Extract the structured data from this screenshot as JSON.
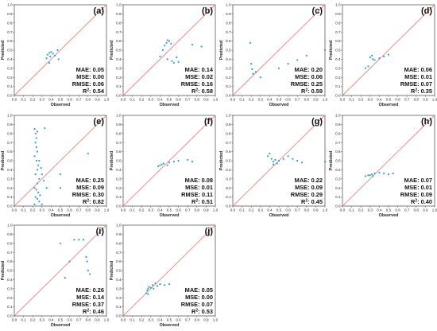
{
  "axis_ticks": [
    "0.0",
    "0.1",
    "0.2",
    "0.3",
    "0.4",
    "0.5",
    "0.6",
    "0.7",
    "0.8",
    "0.9",
    "1.0"
  ],
  "colors": {
    "points": "#2a9fd6",
    "diagonal": "#f08080",
    "frame": "#444444"
  },
  "chart_data": [
    {
      "type": "scatter",
      "label": "(a)",
      "xlabel": "Observed",
      "ylabel": "Predicted",
      "xlim": [
        0,
        1
      ],
      "ylim": [
        0,
        1
      ],
      "diagonal": true,
      "metrics": {
        "MAE": "0.05",
        "MSE": "0.00",
        "RMSE": "0.06",
        "R2": "0.54"
      },
      "points": [
        [
          0.35,
          0.41
        ],
        [
          0.36,
          0.45
        ],
        [
          0.38,
          0.47
        ],
        [
          0.4,
          0.48
        ],
        [
          0.42,
          0.46
        ],
        [
          0.44,
          0.44
        ],
        [
          0.47,
          0.5
        ],
        [
          0.48,
          0.4
        ],
        [
          0.38,
          0.36
        ],
        [
          0.39,
          0.43
        ]
      ]
    },
    {
      "type": "scatter",
      "label": "(b)",
      "xlabel": "Observed",
      "ylabel": "Predicted",
      "xlim": [
        0,
        1
      ],
      "ylim": [
        0,
        1
      ],
      "diagonal": true,
      "metrics": {
        "MAE": "0.14",
        "MSE": "0.02",
        "RMSE": "0.16",
        "R2": "0.58"
      },
      "points": [
        [
          0.4,
          0.43
        ],
        [
          0.43,
          0.5
        ],
        [
          0.45,
          0.55
        ],
        [
          0.47,
          0.58
        ],
        [
          0.48,
          0.61
        ],
        [
          0.5,
          0.6
        ],
        [
          0.52,
          0.57
        ],
        [
          0.48,
          0.4
        ],
        [
          0.53,
          0.38
        ],
        [
          0.55,
          0.36
        ],
        [
          0.58,
          0.42
        ],
        [
          0.6,
          0.37
        ],
        [
          0.75,
          0.56
        ],
        [
          0.85,
          0.54
        ]
      ]
    },
    {
      "type": "scatter",
      "label": "(c)",
      "xlabel": "Observed",
      "ylabel": "Predicted",
      "xlim": [
        0,
        1
      ],
      "ylim": [
        0,
        1
      ],
      "diagonal": true,
      "metrics": {
        "MAE": "0.20",
        "MSE": "0.06",
        "RMSE": "0.25",
        "R2": "0.59"
      },
      "points": [
        [
          0.19,
          0.58
        ],
        [
          0.2,
          0.35
        ],
        [
          0.21,
          0.29
        ],
        [
          0.22,
          0.24
        ],
        [
          0.25,
          0.26
        ],
        [
          0.3,
          0.2
        ],
        [
          0.5,
          0.3
        ],
        [
          0.6,
          0.35
        ],
        [
          0.7,
          0.39
        ],
        [
          0.8,
          0.44
        ],
        [
          1.0,
          0.5
        ]
      ]
    },
    {
      "type": "scatter",
      "label": "(d)",
      "xlabel": "Observed",
      "ylabel": "Predicted",
      "xlim": [
        0,
        1
      ],
      "ylim": [
        0,
        1
      ],
      "diagonal": true,
      "metrics": {
        "MAE": "0.06",
        "MSE": "0.01",
        "RMSE": "0.07",
        "R2": "0.35"
      },
      "points": [
        [
          0.25,
          0.3
        ],
        [
          0.28,
          0.32
        ],
        [
          0.3,
          0.42
        ],
        [
          0.33,
          0.4
        ],
        [
          0.35,
          0.39
        ],
        [
          0.4,
          0.41
        ],
        [
          0.45,
          0.43
        ],
        [
          0.5,
          0.45
        ],
        [
          0.32,
          0.44
        ]
      ]
    },
    {
      "type": "scatter",
      "label": "(e)",
      "xlabel": "Observed",
      "ylabel": "Predicted",
      "xlim": [
        0,
        1
      ],
      "ylim": [
        0,
        1
      ],
      "diagonal": true,
      "metrics": {
        "MAE": "0.25",
        "MSE": "0.09",
        "RMSE": "0.30",
        "R2": "0.82"
      },
      "points": [
        [
          0.22,
          0.85
        ],
        [
          0.23,
          0.8
        ],
        [
          0.24,
          0.75
        ],
        [
          0.25,
          0.82
        ],
        [
          0.23,
          0.7
        ],
        [
          0.24,
          0.65
        ],
        [
          0.25,
          0.6
        ],
        [
          0.22,
          0.55
        ],
        [
          0.24,
          0.5
        ],
        [
          0.26,
          0.45
        ],
        [
          0.25,
          0.4
        ],
        [
          0.23,
          0.35
        ],
        [
          0.27,
          0.3
        ],
        [
          0.25,
          0.25
        ],
        [
          0.22,
          0.2
        ],
        [
          0.24,
          0.18
        ],
        [
          0.26,
          0.15
        ],
        [
          0.28,
          0.12
        ],
        [
          0.23,
          0.1
        ],
        [
          0.25,
          0.08
        ],
        [
          0.27,
          0.05
        ],
        [
          0.3,
          0.02
        ],
        [
          0.22,
          0.02
        ],
        [
          0.3,
          0.35
        ],
        [
          0.32,
          0.28
        ],
        [
          0.35,
          0.2
        ],
        [
          0.33,
          0.86
        ],
        [
          0.5,
          0.35
        ],
        [
          0.5,
          0.2
        ],
        [
          0.8,
          0.58
        ],
        [
          0.27,
          0.5
        ],
        [
          0.29,
          0.42
        ]
      ]
    },
    {
      "type": "scatter",
      "label": "(f)",
      "xlabel": "Observed",
      "ylabel": "Predicted",
      "xlim": [
        0,
        1
      ],
      "ylim": [
        0,
        1
      ],
      "diagonal": true,
      "metrics": {
        "MAE": "0.08",
        "MSE": "0.01",
        "RMSE": "0.11",
        "R2": "0.51"
      },
      "points": [
        [
          0.38,
          0.44
        ],
        [
          0.4,
          0.45
        ],
        [
          0.42,
          0.46
        ],
        [
          0.44,
          0.47
        ],
        [
          0.5,
          0.48
        ],
        [
          0.55,
          0.49
        ],
        [
          0.6,
          0.5
        ],
        [
          0.7,
          0.51
        ],
        [
          0.75,
          0.49
        ],
        [
          0.48,
          0.45
        ]
      ]
    },
    {
      "type": "scatter",
      "label": "(g)",
      "xlabel": "Observed",
      "ylabel": "Predicted",
      "xlim": [
        0,
        1
      ],
      "ylim": [
        0,
        1
      ],
      "diagonal": true,
      "metrics": {
        "MAE": "0.22",
        "MSE": "0.09",
        "RMSE": "0.29",
        "R2": "0.45"
      },
      "points": [
        [
          0.38,
          0.55
        ],
        [
          0.4,
          0.58
        ],
        [
          0.42,
          0.52
        ],
        [
          0.44,
          0.49
        ],
        [
          0.46,
          0.51
        ],
        [
          0.48,
          0.47
        ],
        [
          0.5,
          0.5
        ],
        [
          0.55,
          0.52
        ],
        [
          0.6,
          0.55
        ],
        [
          0.65,
          0.52
        ],
        [
          0.7,
          0.5
        ],
        [
          0.75,
          0.48
        ],
        [
          1.0,
          0.49
        ],
        [
          0.44,
          0.46
        ]
      ]
    },
    {
      "type": "scatter",
      "label": "(h)",
      "xlabel": "Observed",
      "ylabel": "Predicted",
      "xlim": [
        0,
        1
      ],
      "ylim": [
        0,
        1
      ],
      "diagonal": true,
      "metrics": {
        "MAE": "0.07",
        "MSE": "0.01",
        "RMSE": "0.09",
        "R2": "0.40"
      },
      "points": [
        [
          0.25,
          0.33
        ],
        [
          0.28,
          0.34
        ],
        [
          0.3,
          0.34
        ],
        [
          0.32,
          0.35
        ],
        [
          0.35,
          0.36
        ],
        [
          0.4,
          0.37
        ],
        [
          0.45,
          0.36
        ],
        [
          0.5,
          0.35
        ],
        [
          0.55,
          0.36
        ],
        [
          0.33,
          0.33
        ]
      ]
    },
    {
      "type": "scatter",
      "label": "(i)",
      "xlabel": "Observed",
      "ylabel": "Predicted",
      "xlim": [
        0,
        1
      ],
      "ylim": [
        0,
        1
      ],
      "diagonal": true,
      "metrics": {
        "MAE": "0.26",
        "MSE": "0.14",
        "RMSE": "0.37",
        "R2": "0.46"
      },
      "points": [
        [
          0.5,
          0.8
        ],
        [
          0.55,
          0.42
        ],
        [
          0.6,
          0.6
        ],
        [
          0.65,
          0.84
        ],
        [
          0.7,
          0.84
        ],
        [
          0.75,
          0.84
        ],
        [
          0.78,
          0.65
        ],
        [
          0.8,
          0.5
        ],
        [
          0.82,
          0.46
        ],
        [
          0.79,
          0.6
        ]
      ]
    },
    {
      "type": "scatter",
      "label": "(j)",
      "xlabel": "Observed",
      "ylabel": "Predicted",
      "xlim": [
        0,
        1
      ],
      "ylim": [
        0,
        1
      ],
      "diagonal": true,
      "metrics": {
        "MAE": "0.05",
        "MSE": "0.00",
        "RMSE": "0.07",
        "R2": "0.53"
      },
      "points": [
        [
          0.25,
          0.25
        ],
        [
          0.26,
          0.28
        ],
        [
          0.27,
          0.3
        ],
        [
          0.28,
          0.32
        ],
        [
          0.3,
          0.31
        ],
        [
          0.32,
          0.34
        ],
        [
          0.35,
          0.36
        ],
        [
          0.37,
          0.33
        ],
        [
          0.4,
          0.35
        ],
        [
          0.45,
          0.34
        ],
        [
          0.5,
          0.35
        ],
        [
          0.27,
          0.24
        ],
        [
          0.33,
          0.3
        ]
      ]
    }
  ]
}
